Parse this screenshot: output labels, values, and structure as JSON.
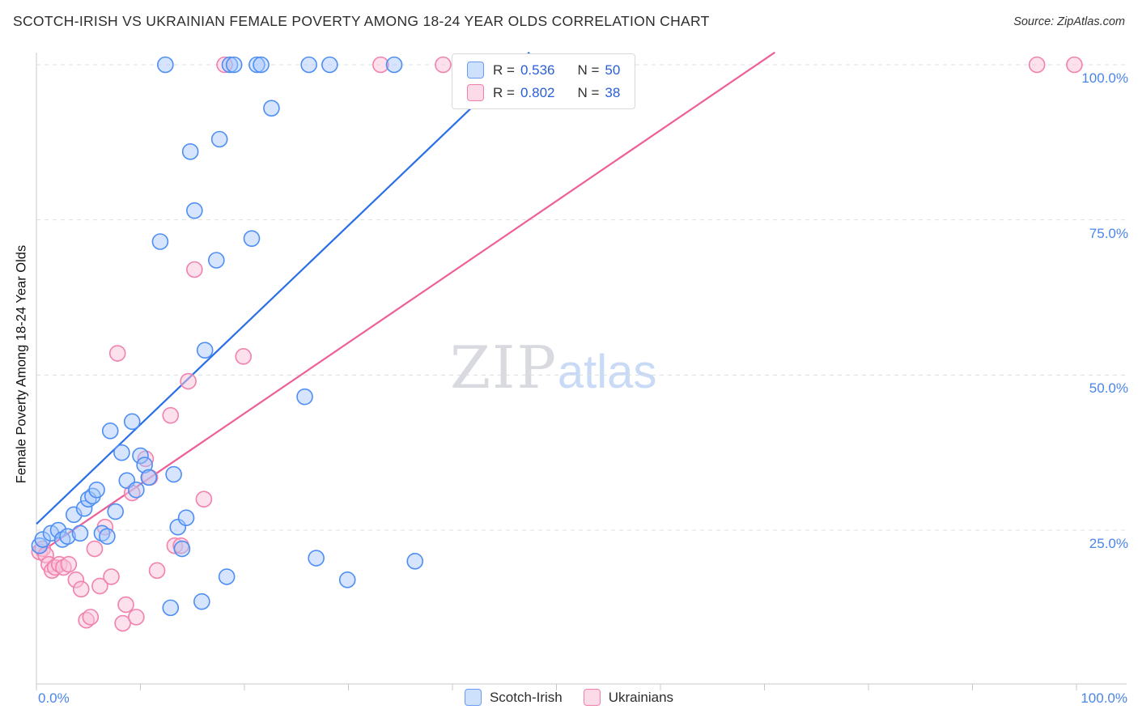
{
  "header": {
    "title": "SCOTCH-IRISH VS UKRAINIAN FEMALE POVERTY AMONG 18-24 YEAR OLDS CORRELATION CHART",
    "source": "Source: ZipAtlas.com"
  },
  "watermark": {
    "zip": "ZIP",
    "atlas": "atlas"
  },
  "axes": {
    "x_min_label": "0.0%",
    "x_max_label": "100.0%",
    "x_tick_values": [
      0,
      10,
      20,
      30,
      40,
      50,
      60,
      70,
      80,
      90,
      100
    ],
    "y_tick_labels": [
      "100.0%",
      "75.0%",
      "50.0%",
      "25.0%"
    ],
    "y_tick_values": [
      100,
      75,
      50,
      25
    ]
  },
  "legend": {
    "rows": [
      {
        "series": "Scotch-Irish",
        "r_label": "R =",
        "r_value": "0.536",
        "n_label": "N =",
        "n_value": "50"
      },
      {
        "series": "Ukrainians",
        "r_label": "R =",
        "r_value": "0.802",
        "n_label": "N =",
        "n_value": "38"
      }
    ]
  },
  "bottom_legend": {
    "items": [
      "Scotch-Irish",
      "Ukrainians"
    ]
  },
  "colors": {
    "blue_fill": "#a4c6fa",
    "blue_stroke": "#4d8ef5",
    "blue_line": "#2a6fe8",
    "pink_fill": "#fac1d7",
    "pink_stroke": "#f181ae",
    "pink_line": "#ee5f98",
    "grid": "#dcdfe3",
    "axis": "#c8c8c8",
    "tick_label": "#4a86e8",
    "legend_value": "#2a5fd3",
    "title_text": "#2d2d2d",
    "watermark_zip": "#d4d7dc",
    "watermark_atlas": "#c3d7f5"
  },
  "chart_data": {
    "type": "scatter",
    "title": "Scotch-Irish vs Ukrainian Female Poverty Among 18-24 Year Olds",
    "xlabel": "",
    "ylabel": "Female Poverty Among 18-24 Year Olds",
    "xlim": [
      0,
      100
    ],
    "ylim": [
      0,
      100
    ],
    "units": "%",
    "grid": "horizontal-dashed",
    "legend_position": "top-center",
    "series": [
      {
        "name": "Scotch-Irish",
        "R": 0.536,
        "N": 50,
        "points": [
          [
            0.3,
            22.5
          ],
          [
            0.6,
            23.5
          ],
          [
            1.4,
            24.5
          ],
          [
            2.1,
            25
          ],
          [
            2.5,
            23.5
          ],
          [
            3,
            24
          ],
          [
            3.6,
            27.5
          ],
          [
            4.2,
            24.5
          ],
          [
            4.6,
            28.5
          ],
          [
            5,
            30
          ],
          [
            5.4,
            30.5
          ],
          [
            5.8,
            31.5
          ],
          [
            6.3,
            24.5
          ],
          [
            6.8,
            24
          ],
          [
            7.1,
            41
          ],
          [
            7.6,
            28
          ],
          [
            8.2,
            37.5
          ],
          [
            8.7,
            33
          ],
          [
            9.2,
            42.5
          ],
          [
            9.6,
            31.5
          ],
          [
            10,
            37
          ],
          [
            10.4,
            35.5
          ],
          [
            10.8,
            33.5
          ],
          [
            11.9,
            71.5
          ],
          [
            12.4,
            100
          ],
          [
            12.9,
            12.5
          ],
          [
            13.2,
            34
          ],
          [
            13.6,
            25.5
          ],
          [
            14,
            22
          ],
          [
            14.4,
            27
          ],
          [
            14.8,
            86
          ],
          [
            15.2,
            76.5
          ],
          [
            15.9,
            13.5
          ],
          [
            16.2,
            54
          ],
          [
            17.3,
            68.5
          ],
          [
            17.6,
            88
          ],
          [
            18.3,
            17.5
          ],
          [
            18.6,
            100
          ],
          [
            19,
            100
          ],
          [
            20.7,
            72
          ],
          [
            21.2,
            100
          ],
          [
            21.6,
            100
          ],
          [
            22.6,
            93
          ],
          [
            25.8,
            46.5
          ],
          [
            26.2,
            100
          ],
          [
            26.9,
            20.5
          ],
          [
            28.2,
            100
          ],
          [
            29.9,
            17
          ],
          [
            34.4,
            100
          ],
          [
            36.4,
            20
          ]
        ]
      },
      {
        "name": "Ukrainians",
        "R": 0.802,
        "N": 38,
        "points": [
          [
            0.3,
            21.5
          ],
          [
            0.6,
            22
          ],
          [
            0.9,
            21
          ],
          [
            1.2,
            19.5
          ],
          [
            1.5,
            18.5
          ],
          [
            1.8,
            19
          ],
          [
            2.2,
            19.5
          ],
          [
            2.6,
            19
          ],
          [
            3.1,
            19.5
          ],
          [
            3.8,
            17
          ],
          [
            4.3,
            15.5
          ],
          [
            4.8,
            10.5
          ],
          [
            5.2,
            11
          ],
          [
            5.6,
            22
          ],
          [
            6.1,
            16
          ],
          [
            6.6,
            25.5
          ],
          [
            7.2,
            17.5
          ],
          [
            7.8,
            53.5
          ],
          [
            8.3,
            10
          ],
          [
            8.6,
            13
          ],
          [
            9.2,
            31
          ],
          [
            9.6,
            11
          ],
          [
            10.5,
            36.5
          ],
          [
            10.9,
            33.5
          ],
          [
            11.6,
            18.5
          ],
          [
            12.9,
            43.5
          ],
          [
            13.3,
            22.5
          ],
          [
            13.9,
            22.5
          ],
          [
            14.6,
            49
          ],
          [
            15.2,
            67
          ],
          [
            16.1,
            30
          ],
          [
            18.1,
            100
          ],
          [
            19.9,
            53
          ],
          [
            33.1,
            100
          ],
          [
            39.1,
            100
          ],
          [
            50.8,
            100
          ],
          [
            96.2,
            100
          ],
          [
            99.8,
            100
          ]
        ]
      }
    ],
    "trend_lines": [
      {
        "series": "Scotch-Irish",
        "start": [
          0,
          26
        ],
        "end": [
          47.4,
          102
        ]
      },
      {
        "series": "Ukrainians",
        "start": [
          0,
          21
        ],
        "end": [
          71,
          102
        ]
      }
    ]
  }
}
